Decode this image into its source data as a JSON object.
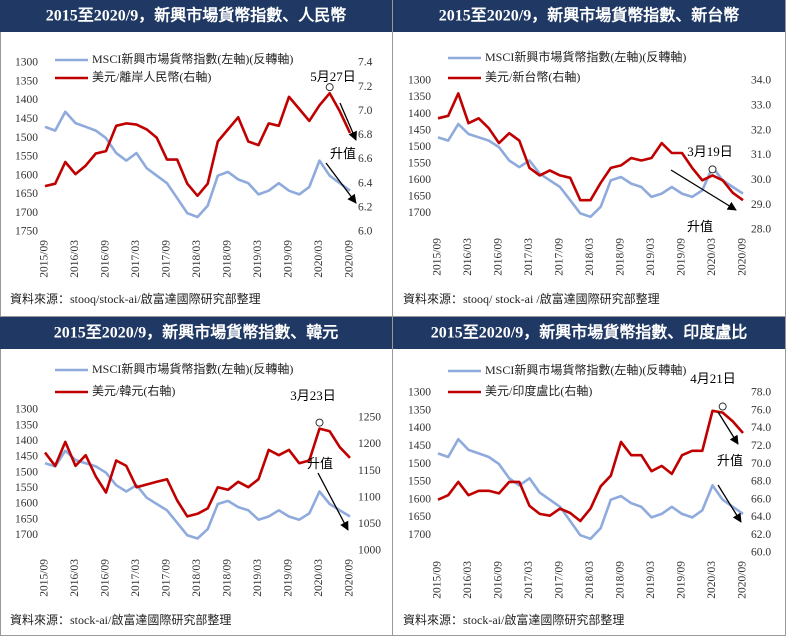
{
  "chart_data": [
    {
      "type": "line",
      "title": "2015至2020/9，新興市場貨幣指數、人民幣",
      "categories": [
        "2015/09",
        null,
        null,
        "2016/03",
        null,
        null,
        "2016/09",
        null,
        null,
        "2017/03",
        null,
        null,
        "2017/09",
        null,
        null,
        "2018/03",
        null,
        null,
        "2018/09",
        null,
        null,
        "2019/03",
        null,
        null,
        "2019/09",
        null,
        null,
        "2020/03",
        null,
        null,
        "2020/09"
      ],
      "series": [
        {
          "name": "MSCI新興市場貨幣指數(左軸)(反轉軸)",
          "color": "#8faadc",
          "axis": "y",
          "values": [
            1470,
            1480,
            1430,
            1460,
            1470,
            1480,
            1500,
            1540,
            1560,
            1540,
            1580,
            1600,
            1620,
            1660,
            1700,
            1710,
            1680,
            1600,
            1590,
            1610,
            1620,
            1650,
            1640,
            1620,
            1640,
            1650,
            1630,
            1560,
            1600,
            1620,
            1640
          ]
        },
        {
          "name": "美元/離岸人民幣(右軸)",
          "color": "#c00000",
          "axis": "y2",
          "values": [
            6.38,
            6.4,
            6.58,
            6.48,
            6.55,
            6.65,
            6.67,
            6.88,
            6.9,
            6.89,
            6.85,
            6.78,
            6.6,
            6.6,
            6.4,
            6.3,
            6.4,
            6.75,
            6.85,
            6.95,
            6.75,
            6.72,
            6.9,
            6.88,
            7.12,
            7.02,
            6.92,
            7.05,
            7.15,
            7.0,
            6.82
          ]
        }
      ],
      "ylim": [
        1300,
        1750
      ],
      "yticks": [
        1300,
        1350,
        1400,
        1450,
        1500,
        1550,
        1600,
        1650,
        1700,
        1750
      ],
      "y_reversed": true,
      "y2lim": [
        6.0,
        7.4
      ],
      "y2ticks": [
        {
          "value": 6.0,
          "label": "6.0"
        },
        6.2,
        6.4,
        6.6,
        6.8,
        {
          "value": 7.0,
          "label": "7.0"
        },
        7.2,
        7.4
      ],
      "annotations": [
        "5月27日",
        "升值"
      ],
      "source": "資料來源：stooq/stock-ai/啟富達國際研究部整理"
    },
    {
      "type": "line",
      "title": "2015至2020/9，新興市場貨幣指數、新台幣",
      "categories": [
        "2015/09",
        null,
        null,
        "2016/03",
        null,
        null,
        "2016/09",
        null,
        null,
        "2017/03",
        null,
        null,
        "2017/09",
        null,
        null,
        "2018/03",
        null,
        null,
        "2018/09",
        null,
        null,
        "2019/03",
        null,
        null,
        "2019/09",
        null,
        null,
        "2020/03",
        null,
        null,
        "2020/09"
      ],
      "series": [
        {
          "name": "MSCI新興市場貨幣指數(左軸)(反轉軸)",
          "color": "#8faadc",
          "axis": "y",
          "values": [
            1470,
            1480,
            1430,
            1460,
            1470,
            1480,
            1500,
            1540,
            1560,
            1540,
            1580,
            1600,
            1620,
            1660,
            1700,
            1710,
            1680,
            1600,
            1590,
            1610,
            1620,
            1650,
            1640,
            1620,
            1640,
            1650,
            1630,
            1560,
            1600,
            1620,
            1640
          ]
        },
        {
          "name": "美元/新台幣(右軸)",
          "color": "#c00000",
          "axis": "y2",
          "values": [
            32.5,
            32.6,
            33.5,
            32.3,
            32.5,
            32.1,
            31.5,
            31.9,
            31.6,
            30.5,
            30.2,
            30.4,
            30.2,
            30.1,
            29.2,
            29.2,
            29.9,
            30.5,
            30.6,
            30.9,
            30.8,
            30.9,
            31.5,
            31.1,
            31.1,
            30.5,
            30.0,
            30.2,
            30.0,
            29.5,
            29.2
          ]
        }
      ],
      "ylim": [
        1300,
        1750
      ],
      "yticks": [
        1300,
        1350,
        1400,
        1450,
        1500,
        1550,
        1600,
        1650,
        1700
      ],
      "y_reversed": true,
      "y2lim": [
        28,
        34
      ],
      "y2ticks": [
        {
          "value": 28,
          "label": "28.0"
        },
        {
          "value": 29,
          "label": "29.0"
        },
        {
          "value": 30,
          "label": "30.0"
        },
        {
          "value": 31,
          "label": "31.0"
        },
        {
          "value": 32,
          "label": "32.0"
        },
        {
          "value": 33,
          "label": "33.0"
        },
        {
          "value": 34,
          "label": "34.0"
        }
      ],
      "annotations": [
        "3月19日",
        "升值"
      ],
      "source": "資料來源：stooq/ stock-ai /啟富達國際研究部整理"
    },
    {
      "type": "line",
      "title": "2015至2020/9，新興市場貨幣指數、韓元",
      "categories": [
        "2015/09",
        null,
        null,
        "2016/03",
        null,
        null,
        "2016/09",
        null,
        null,
        "2017/03",
        null,
        null,
        "2017/09",
        null,
        null,
        "2018/03",
        null,
        null,
        "2018/09",
        null,
        null,
        "2019/03",
        null,
        null,
        "2019/09",
        null,
        null,
        "2020/03",
        null,
        null,
        "2020/09"
      ],
      "series": [
        {
          "name": "MSCI新興市場貨幣指數(左軸)(反轉軸)",
          "color": "#8faadc",
          "axis": "y",
          "values": [
            1470,
            1480,
            1430,
            1460,
            1470,
            1480,
            1500,
            1540,
            1560,
            1540,
            1580,
            1600,
            1620,
            1660,
            1700,
            1710,
            1680,
            1600,
            1590,
            1610,
            1620,
            1650,
            1640,
            1620,
            1640,
            1650,
            1630,
            1560,
            1600,
            1620,
            1640
          ]
        },
        {
          "name": "美元/韓元(右軸)",
          "color": "#c00000",
          "axis": "y2",
          "values": [
            1185,
            1160,
            1205,
            1160,
            1180,
            1140,
            1110,
            1170,
            1160,
            1120,
            1125,
            1130,
            1135,
            1095,
            1065,
            1070,
            1080,
            1120,
            1115,
            1130,
            1120,
            1135,
            1190,
            1180,
            1190,
            1165,
            1170,
            1230,
            1225,
            1195,
            1175
          ]
        }
      ],
      "ylim": [
        1300,
        1750
      ],
      "yticks": [
        1300,
        1350,
        1400,
        1450,
        1500,
        1550,
        1600,
        1650,
        1700
      ],
      "y_reversed": true,
      "y2lim": [
        1000,
        1265
      ],
      "y2ticks": [
        1000,
        1050,
        1100,
        1150,
        1200,
        1250
      ],
      "annotations": [
        "3月23日",
        "升值"
      ],
      "source": "資料來源：stock-ai/啟富達國際研究部整理"
    },
    {
      "type": "line",
      "title": "2015至2020/9，新興市場貨幣指數、印度盧比",
      "categories": [
        "2015/09",
        null,
        null,
        "2016/03",
        null,
        null,
        "2016/09",
        null,
        null,
        "2017/03",
        null,
        null,
        "2017/09",
        null,
        null,
        "2018/03",
        null,
        null,
        "2018/09",
        null,
        null,
        "2019/03",
        null,
        null,
        "2019/09",
        null,
        null,
        "2020/03",
        null,
        null,
        "2020/09"
      ],
      "series": [
        {
          "name": "MSCI新興市場貨幣指數(左軸)(反轉軸)",
          "color": "#8faadc",
          "axis": "y",
          "values": [
            1470,
            1480,
            1430,
            1460,
            1470,
            1480,
            1500,
            1540,
            1560,
            1540,
            1580,
            1600,
            1620,
            1660,
            1700,
            1710,
            1680,
            1600,
            1590,
            1610,
            1620,
            1650,
            1640,
            1620,
            1640,
            1650,
            1630,
            1560,
            1600,
            1620,
            1640
          ]
        },
        {
          "name": "美元/印度盧比(右軸)",
          "color": "#c00000",
          "axis": "y2",
          "values": [
            66.0,
            66.5,
            68.0,
            66.5,
            67.0,
            67.0,
            66.7,
            68.0,
            68.0,
            65.3,
            64.4,
            64.2,
            65.0,
            64.5,
            63.6,
            65.0,
            67.5,
            68.7,
            72.5,
            71.0,
            71.0,
            69.2,
            69.8,
            68.9,
            71.0,
            71.5,
            71.5,
            76.0,
            75.8,
            74.8,
            73.5
          ]
        }
      ],
      "ylim": [
        1300,
        1750
      ],
      "yticks": [
        1300,
        1350,
        1400,
        1450,
        1500,
        1550,
        1600,
        1650,
        1700
      ],
      "y_reversed": true,
      "y2lim": [
        60,
        78
      ],
      "y2ticks": [
        {
          "value": 60,
          "label": "60.0"
        },
        {
          "value": 62,
          "label": "62.0"
        },
        {
          "value": 64,
          "label": "64.0"
        },
        {
          "value": 66,
          "label": "66.0"
        },
        {
          "value": 68,
          "label": "68.0"
        },
        {
          "value": 70,
          "label": "70.0"
        },
        {
          "value": 72,
          "label": "72.0"
        },
        {
          "value": 74,
          "label": "74.0"
        },
        {
          "value": 76,
          "label": "76.0"
        },
        {
          "value": 78,
          "label": "78.0"
        }
      ],
      "annotations": [
        "4月21日",
        "升值"
      ],
      "source": "資料來源：stock-ai/啟富達國際研究部整理"
    }
  ]
}
